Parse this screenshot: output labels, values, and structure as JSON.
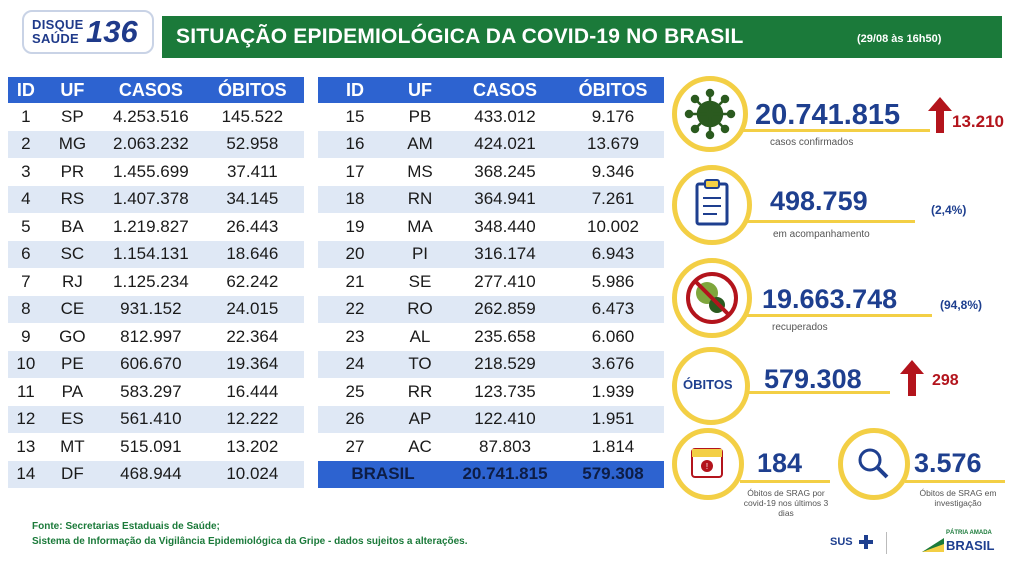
{
  "header": {
    "logo_top": "DISQUE",
    "logo_bottom": "SAÚDE",
    "logo_number": "136",
    "title": "SITUAÇÃO EPIDEMIOLÓGICA DA COVID-19 NO BRASIL",
    "date": "(29/08 às 16h50)"
  },
  "table_headers": [
    "ID",
    "UF",
    "CASOS",
    "ÓBITOS"
  ],
  "table_left": [
    {
      "id": "1",
      "uf": "SP",
      "casos": "4.253.516",
      "obitos": "145.522"
    },
    {
      "id": "2",
      "uf": "MG",
      "casos": "2.063.232",
      "obitos": "52.958"
    },
    {
      "id": "3",
      "uf": "PR",
      "casos": "1.455.699",
      "obitos": "37.411"
    },
    {
      "id": "4",
      "uf": "RS",
      "casos": "1.407.378",
      "obitos": "34.145"
    },
    {
      "id": "5",
      "uf": "BA",
      "casos": "1.219.827",
      "obitos": "26.443"
    },
    {
      "id": "6",
      "uf": "SC",
      "casos": "1.154.131",
      "obitos": "18.646"
    },
    {
      "id": "7",
      "uf": "RJ",
      "casos": "1.125.234",
      "obitos": "62.242"
    },
    {
      "id": "8",
      "uf": "CE",
      "casos": "931.152",
      "obitos": "24.015"
    },
    {
      "id": "9",
      "uf": "GO",
      "casos": "812.997",
      "obitos": "22.364"
    },
    {
      "id": "10",
      "uf": "PE",
      "casos": "606.670",
      "obitos": "19.364"
    },
    {
      "id": "11",
      "uf": "PA",
      "casos": "583.297",
      "obitos": "16.444"
    },
    {
      "id": "12",
      "uf": "ES",
      "casos": "561.410",
      "obitos": "12.222"
    },
    {
      "id": "13",
      "uf": "MT",
      "casos": "515.091",
      "obitos": "13.202"
    },
    {
      "id": "14",
      "uf": "DF",
      "casos": "468.944",
      "obitos": "10.024"
    }
  ],
  "table_right": [
    {
      "id": "15",
      "uf": "PB",
      "casos": "433.012",
      "obitos": "9.176"
    },
    {
      "id": "16",
      "uf": "AM",
      "casos": "424.021",
      "obitos": "13.679"
    },
    {
      "id": "17",
      "uf": "MS",
      "casos": "368.245",
      "obitos": "9.346"
    },
    {
      "id": "18",
      "uf": "RN",
      "casos": "364.941",
      "obitos": "7.261"
    },
    {
      "id": "19",
      "uf": "MA",
      "casos": "348.440",
      "obitos": "10.002"
    },
    {
      "id": "20",
      "uf": "PI",
      "casos": "316.174",
      "obitos": "6.943"
    },
    {
      "id": "21",
      "uf": "SE",
      "casos": "277.410",
      "obitos": "5.986"
    },
    {
      "id": "22",
      "uf": "RO",
      "casos": "262.859",
      "obitos": "6.473"
    },
    {
      "id": "23",
      "uf": "AL",
      "casos": "235.658",
      "obitos": "6.060"
    },
    {
      "id": "24",
      "uf": "TO",
      "casos": "218.529",
      "obitos": "3.676"
    },
    {
      "id": "25",
      "uf": "RR",
      "casos": "123.735",
      "obitos": "1.939"
    },
    {
      "id": "26",
      "uf": "AP",
      "casos": "122.410",
      "obitos": "1.951"
    },
    {
      "id": "27",
      "uf": "AC",
      "casos": "87.803",
      "obitos": "1.814"
    }
  ],
  "table_total": {
    "label": "BRASIL",
    "casos": "20.741.815",
    "obitos": "579.308"
  },
  "stats": {
    "confirmados": {
      "value": "20.741.815",
      "delta": "13.210",
      "label": "casos confirmados"
    },
    "acompanhamento": {
      "value": "498.759",
      "pct": "(2,4%)",
      "label": "em acompanhamento"
    },
    "recuperados": {
      "value": "19.663.748",
      "pct": "(94,8%)",
      "label": "recuperados"
    },
    "obitos": {
      "badge": "ÓBITOS",
      "value": "579.308",
      "delta": "298"
    },
    "srag_obitos": {
      "value": "184",
      "label": "Óbitos de SRAG por covid-19 nos últimos 3 dias"
    },
    "srag_investigacao": {
      "value": "3.576",
      "label": "Óbitos de SRAG em investigação"
    }
  },
  "footer": {
    "line1": "Fonte: Secretarias Estaduais de Saúde;",
    "line2": "Sistema de Informação da Vigilância Epidemiológica da Gripe - dados sujeitos a alterações.",
    "logo_sus": "SUS",
    "logo_brasil_top": "PÁTRIA AMADA",
    "logo_brasil": "BRASIL"
  },
  "colors": {
    "green": "#1b7a3a",
    "blue": "#2d63d0",
    "navy": "#1e3f8f",
    "yellow": "#f3cf45",
    "red": "#b3141c"
  }
}
